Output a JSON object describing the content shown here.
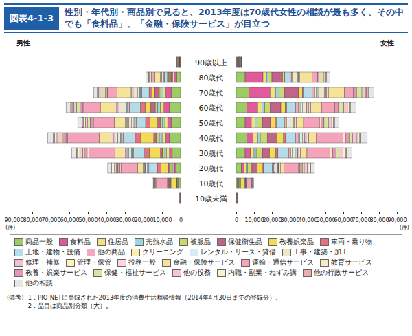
{
  "chart_data": {
    "type": "bar",
    "figure_label": "図表4-1-3",
    "title": "性別・年代別・商品別で見ると、2013年度は70歳代女性の相談が最も多く、その中でも「食料品」、「金融・保険サービス」が目立つ",
    "orientation": "horizontal",
    "stacked": true,
    "xlabel": "(件)",
    "xlim": [
      0,
      90000
    ],
    "xticks": [
      0,
      {
        "value": 10000,
        "label": "10,000"
      },
      {
        "value": 20000,
        "label": "20,000"
      },
      {
        "value": 30000,
        "label": "30,000"
      },
      {
        "value": 40000,
        "label": "40,000"
      },
      {
        "value": 50000,
        "label": "50,000"
      },
      {
        "value": 60000,
        "label": "60,000"
      },
      {
        "value": 70000,
        "label": "70,000"
      },
      {
        "value": 80000,
        "label": "80,000"
      },
      {
        "value": 90000,
        "label": "90,000"
      }
    ],
    "categories": [
      "90歳以上",
      "80歳代",
      "70歳代",
      "60歳代",
      "50歳代",
      "40歳代",
      "30歳代",
      "20歳代",
      "10歳代",
      "10歳未満"
    ],
    "panels": [
      {
        "title": "男性",
        "series": [
          {
            "name": "商品一般",
            "color": "#9ccc65",
            "values": [
              300,
              2000,
              5000,
              6000,
              5000,
              6000,
              4500,
              2500,
              1000,
              100
            ]
          },
          {
            "name": "食料品",
            "color": "#e05a9c",
            "values": [
              100,
              1500,
              3000,
              3000,
              2000,
              2000,
              1500,
              800,
              300,
              100
            ]
          },
          {
            "name": "住居品",
            "color": "#f6e07a",
            "values": [
              100,
              800,
              1500,
              2000,
              1500,
              2000,
              1500,
              800,
              200,
              0
            ]
          },
          {
            "name": "光熱水品",
            "color": "#9fd3e6",
            "values": [
              50,
              500,
              1200,
              1500,
              1200,
              1500,
              1000,
              700,
              100,
              0
            ]
          },
          {
            "name": "被服品",
            "color": "#c9d86f",
            "values": [
              50,
              300,
              800,
              1200,
              1200,
              1500,
              1200,
              800,
              300,
              0
            ]
          },
          {
            "name": "保健衛生品",
            "color": "#c0648a",
            "values": [
              100,
              1000,
              2500,
              2500,
              1500,
              1500,
              1200,
              1000,
              300,
              100
            ]
          },
          {
            "name": "教養娯楽品",
            "color": "#f2dc55",
            "values": [
              50,
              500,
              1500,
              3000,
              4000,
              7000,
              6000,
              4000,
              3000,
              300
            ]
          },
          {
            "name": "車両・乗り物",
            "color": "#e8707a",
            "values": [
              50,
              500,
              1500,
              2500,
              2500,
              3000,
              2500,
              2000,
              300,
              0
            ]
          },
          {
            "name": "土地・建物・設備",
            "color": "#b5dde8",
            "values": [
              200,
              1500,
              4000,
              6000,
              5000,
              6500,
              6000,
              4500,
              500,
              0
            ]
          },
          {
            "name": "他の商品",
            "color": "#f2a9c4",
            "values": [
              50,
              300,
              800,
              1000,
              900,
              1000,
              800,
              500,
              200,
              0
            ]
          },
          {
            "name": "クリーニング",
            "color": "#f8efb0",
            "values": [
              0,
              100,
              300,
              400,
              400,
              500,
              400,
              300,
              100,
              0
            ]
          },
          {
            "name": "レンタル・リース・貸借",
            "color": "#d6ebf4",
            "values": [
              50,
              300,
              1000,
              1500,
              1200,
              1500,
              1500,
              1000,
              200,
              0
            ]
          },
          {
            "name": "工事・建築・加工",
            "color": "#efe6c6",
            "values": [
              100,
              1000,
              2500,
              2500,
              1500,
              1500,
              800,
              300,
              0,
              0
            ]
          },
          {
            "name": "修理・補修",
            "color": "#f0c0d8",
            "values": [
              50,
              300,
              800,
              1000,
              800,
              800,
              600,
              400,
              100,
              0
            ]
          },
          {
            "name": "管理・保管",
            "color": "#fff2bd",
            "values": [
              0,
              100,
              300,
              400,
              300,
              300,
              200,
              100,
              0,
              0
            ]
          },
          {
            "name": "役務一般",
            "color": "#fbd6df",
            "values": [
              50,
              200,
              600,
              800,
              800,
              900,
              800,
              500,
              200,
              0
            ]
          },
          {
            "name": "金融・保険サービス",
            "color": "#f6e39a",
            "values": [
              400,
              3000,
              7000,
              8000,
              6000,
              6500,
              5000,
              3000,
              300,
              0
            ]
          },
          {
            "name": "運輸・通信サービス",
            "color": "#f4a3ba",
            "values": [
              200,
              1500,
              5000,
              9000,
              11000,
              17000,
              14000,
              9000,
              6000,
              300
            ]
          },
          {
            "name": "教育サービス",
            "color": "#fbeabd",
            "values": [
              0,
              50,
              200,
              400,
              500,
              800,
              900,
              600,
              300,
              50
            ]
          },
          {
            "name": "教養・娯楽サービス",
            "color": "#e596b6",
            "values": [
              50,
              300,
              1000,
              1500,
              1500,
              2000,
              1500,
              1200,
              400,
              0
            ]
          },
          {
            "name": "保健・福祉サービス",
            "color": "#d6e69e",
            "values": [
              200,
              1000,
              2000,
              2000,
              1300,
              1200,
              1000,
              700,
              200,
              50
            ]
          },
          {
            "name": "他の役務",
            "color": "#f7c6d6",
            "values": [
              100,
              500,
              1200,
              1500,
              1300,
              1700,
              1500,
              1000,
              300,
              0
            ]
          },
          {
            "name": "内職・副業・ねずみ講",
            "color": "#f7f2cf",
            "values": [
              0,
              100,
              500,
              800,
              1000,
              1300,
              1200,
              1500,
              300,
              0
            ]
          },
          {
            "name": "他の行政サービス",
            "color": "#eeaeae",
            "values": [
              50,
              300,
              700,
              800,
              600,
              700,
              600,
              300,
              100,
              0
            ]
          },
          {
            "name": "他の相談",
            "color": "#e6e6e6",
            "values": [
              200,
              1000,
              2000,
              2500,
              2500,
              3000,
              2500,
              1800,
              600,
              0
            ]
          }
        ]
      },
      {
        "title": "女性",
        "series": [
          {
            "name": "商品一般",
            "color": "#9ccc65",
            "values": [
              300,
              5000,
              7000,
              6000,
              5000,
              6000,
              5000,
              3000,
              700,
              100
            ]
          },
          {
            "name": "食料品",
            "color": "#e05a9c",
            "values": [
              400,
              10000,
              12000,
              6000,
              3500,
              3500,
              3000,
              1500,
              400,
              100
            ]
          },
          {
            "name": "住居品",
            "color": "#f6e07a",
            "values": [
              100,
              2000,
              3000,
              2500,
              2000,
              2500,
              2000,
              1000,
              200,
              0
            ]
          },
          {
            "name": "光熱水品",
            "color": "#9fd3e6",
            "values": [
              50,
              1000,
              2000,
              1500,
              1200,
              1500,
              1200,
              800,
              100,
              0
            ]
          },
          {
            "name": "被服品",
            "color": "#c9d86f",
            "values": [
              100,
              2000,
              3000,
              3000,
              3000,
              4000,
              3500,
              2500,
              500,
              0
            ]
          },
          {
            "name": "保健衛生品",
            "color": "#c0648a",
            "values": [
              300,
              6000,
              8000,
              6000,
              4500,
              5000,
              4000,
              3000,
              600,
              100
            ]
          },
          {
            "name": "教養娯楽品",
            "color": "#f2dc55",
            "values": [
              50,
              1000,
              2000,
              2500,
              2500,
              4000,
              3500,
              2500,
              2000,
              200
            ]
          },
          {
            "name": "車両・乗り物",
            "color": "#e8707a",
            "values": [
              0,
              200,
              500,
              800,
              800,
              1200,
              1200,
              1000,
              100,
              0
            ]
          },
          {
            "name": "土地・建物・設備",
            "color": "#b5dde8",
            "values": [
              200,
              3000,
              5000,
              5000,
              4500,
              5500,
              6000,
              5000,
              300,
              0
            ]
          },
          {
            "name": "他の商品",
            "color": "#f2a9c4",
            "values": [
              50,
              800,
              1500,
              1500,
              1200,
              1500,
              1200,
              800,
              200,
              0
            ]
          },
          {
            "name": "クリーニング",
            "color": "#f8efb0",
            "values": [
              0,
              300,
              800,
              1000,
              800,
              900,
              700,
              500,
              100,
              0
            ]
          },
          {
            "name": "レンタル・リース・貸借",
            "color": "#d6ebf4",
            "values": [
              50,
              500,
              1000,
              1200,
              1200,
              1500,
              1800,
              1500,
              100,
              0
            ]
          },
          {
            "name": "工事・建築・加工",
            "color": "#efe6c6",
            "values": [
              100,
              2500,
              3500,
              2500,
              1500,
              1300,
              800,
              300,
              0,
              0
            ]
          },
          {
            "name": "修理・補修",
            "color": "#f0c0d8",
            "values": [
              50,
              500,
              1000,
              800,
              600,
              600,
              500,
              300,
              50,
              0
            ]
          },
          {
            "name": "管理・保管",
            "color": "#fff2bd",
            "values": [
              0,
              200,
              400,
              300,
              200,
              200,
              200,
              100,
              0,
              0
            ]
          },
          {
            "name": "役務一般",
            "color": "#fbd6df",
            "values": [
              50,
              500,
              1000,
              1200,
              1200,
              1500,
              1500,
              1000,
              200,
              0
            ]
          },
          {
            "name": "金融・保険サービス",
            "color": "#f6e39a",
            "values": [
              500,
              7000,
              9000,
              6000,
              4000,
              4000,
              3500,
              2000,
              200,
              0
            ]
          },
          {
            "name": "運輸・通信サービス",
            "color": "#f4a3ba",
            "values": [
              200,
              3000,
              5000,
              7000,
              9000,
              15000,
              13000,
              8000,
              2500,
              200
            ]
          },
          {
            "name": "教育サービス",
            "color": "#fbeabd",
            "values": [
              0,
              100,
              200,
              500,
              700,
              1500,
              1500,
              800,
              200,
              50
            ]
          },
          {
            "name": "教養・娯楽サービス",
            "color": "#e596b6",
            "values": [
              50,
              800,
              1500,
              2000,
              1800,
              2000,
              1800,
              1500,
              300,
              0
            ]
          },
          {
            "name": "保健・福祉サービス",
            "color": "#d6e69e",
            "values": [
              300,
              2500,
              3000,
              3000,
              2500,
              2000,
              1500,
              1000,
              200,
              100
            ]
          },
          {
            "name": "他の役務",
            "color": "#f7c6d6",
            "values": [
              100,
              1000,
              2000,
              2000,
              1800,
              2500,
              2300,
              1800,
              300,
              0
            ]
          },
          {
            "name": "内職・副業・ねずみ講",
            "color": "#f7f2cf",
            "values": [
              0,
              200,
              600,
              900,
              1000,
              1500,
              1500,
              1500,
              200,
              0
            ]
          },
          {
            "name": "他の行政サービス",
            "color": "#eeaeae",
            "values": [
              50,
              500,
              1000,
              800,
              600,
              700,
              600,
              400,
              50,
              0
            ]
          },
          {
            "name": "他の相談",
            "color": "#e6e6e6",
            "values": [
              200,
              2000,
              3000,
              3000,
              2500,
              3500,
              3000,
              2000,
              400,
              0
            ]
          }
        ]
      }
    ],
    "notes_label": "(備考)",
    "notes": [
      "1．PIO-NETに登録された2013年度の消費生活相談情報（2014年4月30日までの登録分）。",
      "2．品目は商品別分類（大）。"
    ]
  }
}
